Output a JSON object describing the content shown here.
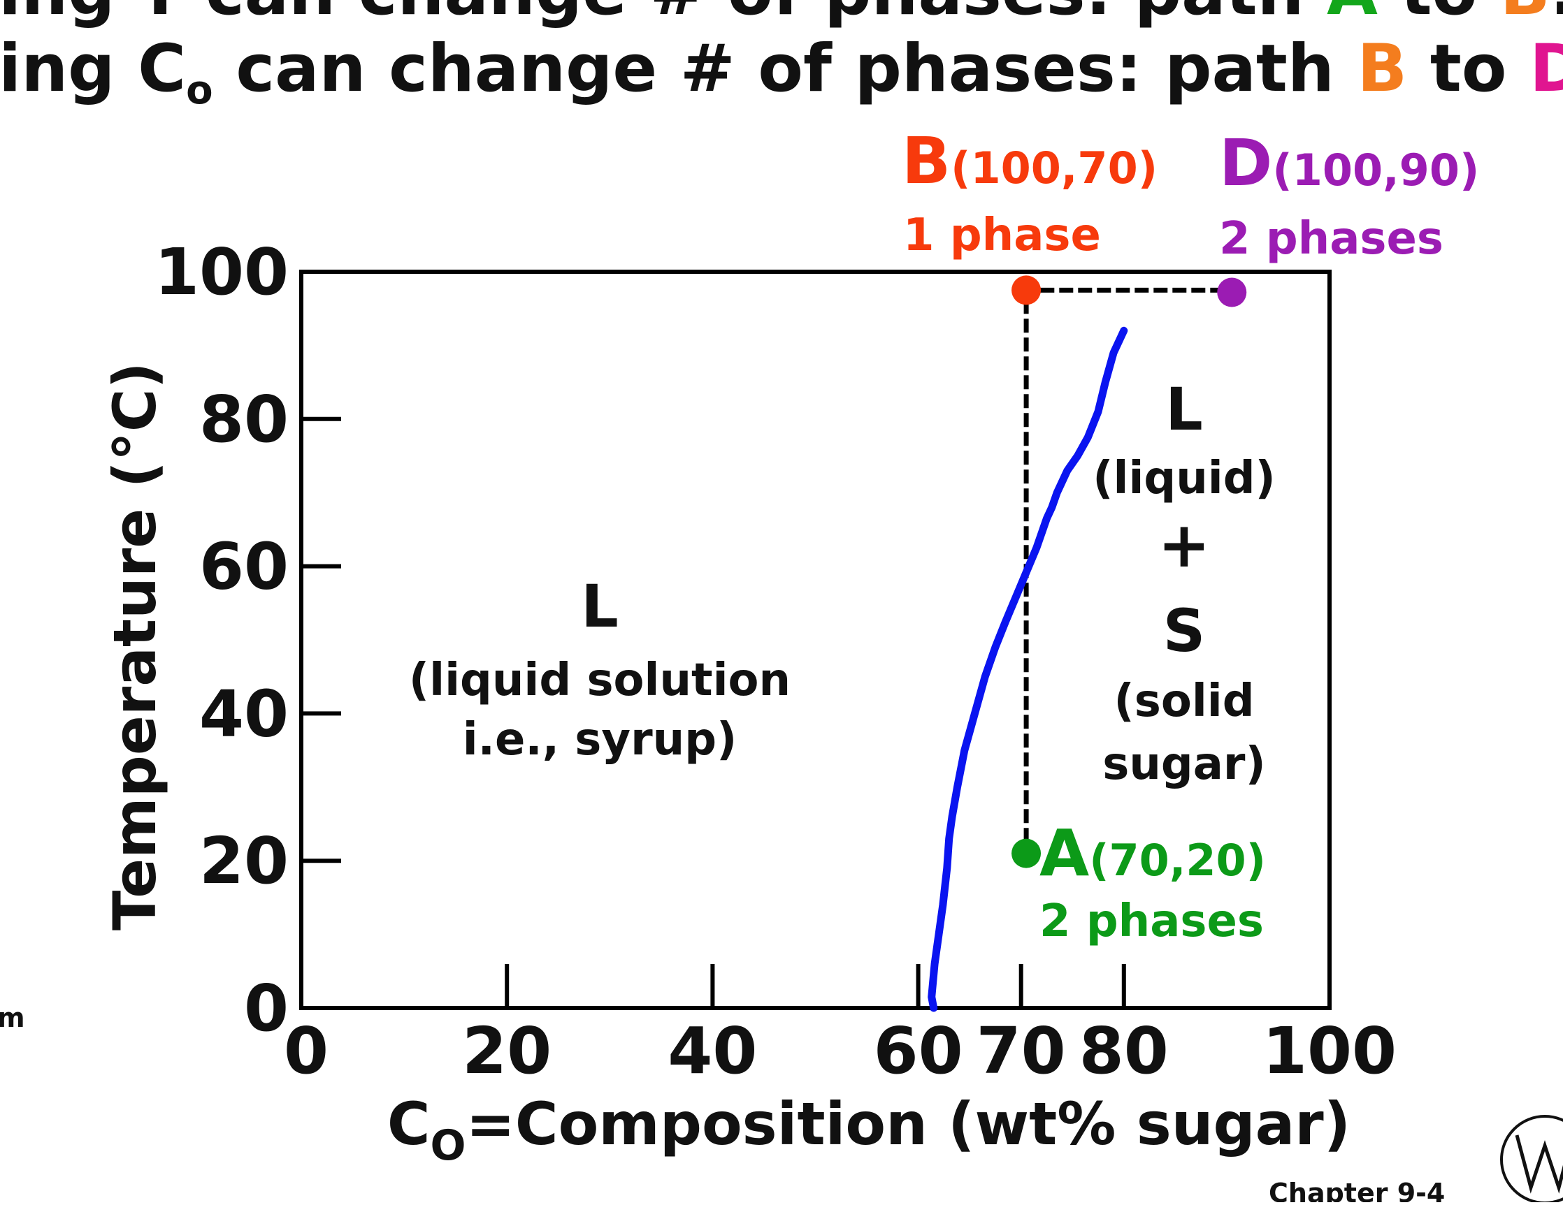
{
  "slide": {
    "line1": {
      "prefix": "ing T can change # of phases:  path ",
      "from": "A",
      "mid": " to ",
      "to": "B",
      "suffix": "."
    },
    "line2": {
      "prefix": "ing C",
      "sub": "o",
      "prefix2": " can change # of phases: path ",
      "from": "B",
      "mid": " to ",
      "to": "D",
      "suffix": "."
    },
    "left_fragment": "m",
    "footer": "Chapter 9-4"
  },
  "chart_data": {
    "type": "line",
    "title": "",
    "xlabel": {
      "main": "C",
      "sub": "O",
      "rest": "=Composition (wt% sugar)"
    },
    "ylabel": "Temperature (°C)",
    "xlim": [
      0,
      100
    ],
    "ylim": [
      0,
      100
    ],
    "xticks": [
      0,
      20,
      40,
      60,
      70,
      80,
      100
    ],
    "yticks": [
      0,
      20,
      40,
      60,
      80,
      100
    ],
    "grid": false,
    "series": [
      {
        "color": "#0a14f0",
        "x": [
          61.5,
          61.3,
          61.6,
          62.0,
          62.4,
          62.8,
          63.0,
          63.3,
          63.8,
          64.5,
          65.5,
          66.5,
          67.5,
          68.5,
          70.0,
          71.5,
          72.5,
          73.0,
          73.5,
          74.5,
          75.5,
          76.5,
          77.5,
          78.2,
          79.0,
          80.0
        ],
        "y": [
          0,
          1.5,
          6,
          10,
          14,
          19,
          23,
          26,
          30,
          35,
          40,
          45,
          49,
          52.5,
          57.5,
          62.5,
          66.5,
          68,
          70,
          73,
          75,
          77.5,
          81,
          85,
          89,
          92
        ]
      }
    ],
    "paths": [
      {
        "color": "#000000",
        "dashed": true,
        "x": [
          70.5,
          70.5,
          90
        ],
        "y": [
          20,
          97.5,
          97.5
        ]
      }
    ],
    "points": [
      {
        "label": "A",
        "coords": "(70,20)",
        "phases": "2 phases",
        "color": "#0c9a18",
        "x": 70.5,
        "y": 21
      },
      {
        "label": "B",
        "coords": "(100,70)",
        "phases": "1 phase",
        "color": "#f73a0c",
        "x": 70.5,
        "y": 97.5
      },
      {
        "label": "D",
        "coords": "(100,90)",
        "phases": "2 phases",
        "color": "#9b1cb3",
        "x": 90.5,
        "y": 97.2
      }
    ],
    "regions": {
      "left": {
        "letter": "L",
        "line1": "(liquid solution",
        "line2": "i.e., syrup)"
      },
      "right": {
        "letter": "L",
        "line1": "(liquid)",
        "plus": "+",
        "letter2": "S",
        "line2": "(solid",
        "line3": "sugar)"
      }
    }
  }
}
